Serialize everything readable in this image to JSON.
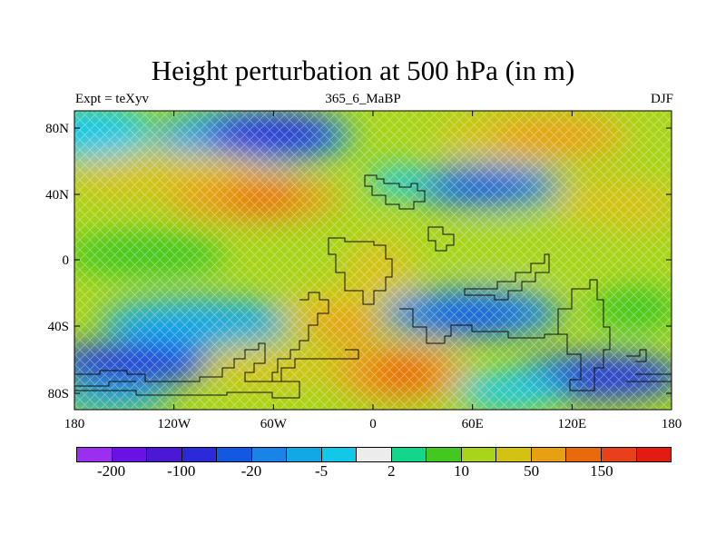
{
  "header": {
    "title": "Height perturbation at 500 hPa (in m)",
    "left": "Expt = teXyv",
    "center": "365_6_MaBP",
    "right": "DJF"
  },
  "map": {
    "x_ticks": [
      "180",
      "120W",
      "60W",
      "0",
      "60E",
      "120E",
      "180"
    ],
    "y_ticks": [
      "80N",
      "40N",
      "0",
      "40S",
      "80S"
    ]
  },
  "colorbar": {
    "colors": [
      "#9b2ff0",
      "#6a12e6",
      "#4b18d4",
      "#2a2ad8",
      "#1358e0",
      "#1a84e6",
      "#12a8e6",
      "#12c8e8",
      "#ececec",
      "#12d68a",
      "#42c820",
      "#a8d41a",
      "#d4c212",
      "#e8a012",
      "#e86a0c",
      "#e8401a",
      "#e21c12"
    ],
    "labels": [
      "-200",
      "-100",
      "-20",
      "-5",
      "2",
      "10",
      "50",
      "150"
    ]
  }
}
